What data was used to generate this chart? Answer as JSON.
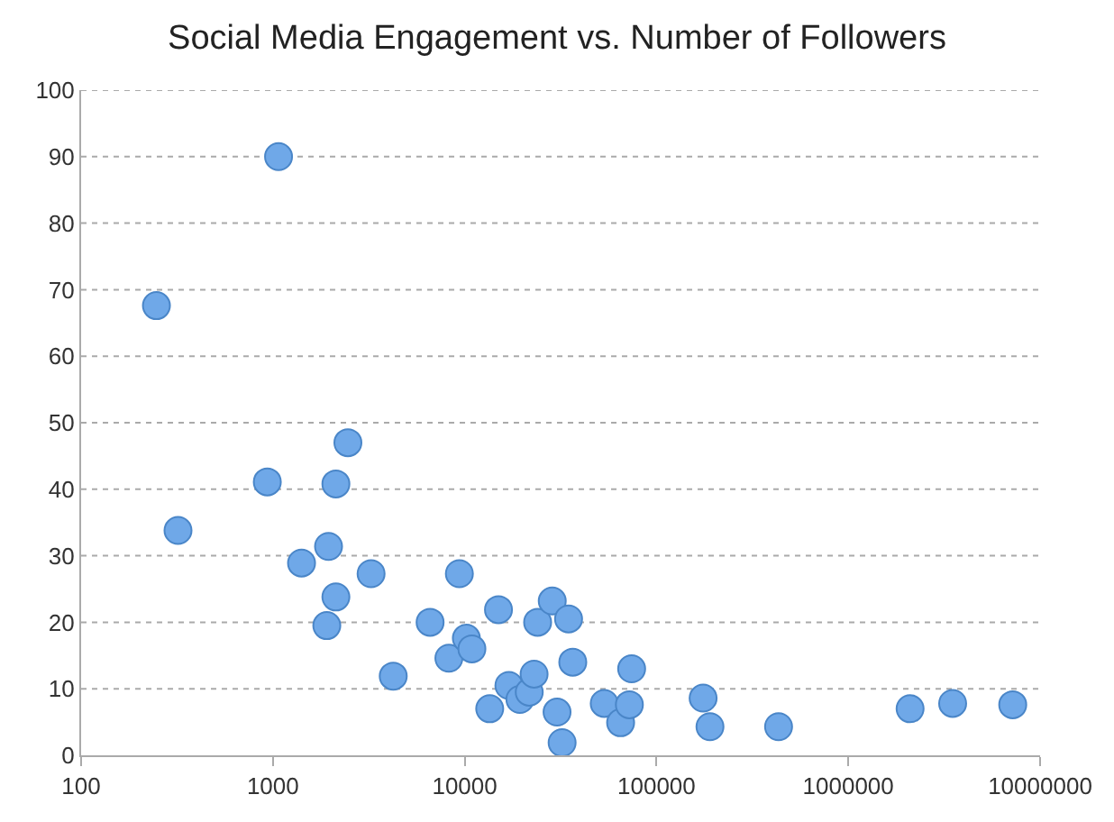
{
  "chart_data": {
    "type": "scatter",
    "title": "Social Media Engagement vs. Number of Followers",
    "x": [
      247,
      1070,
      320,
      935,
      2130,
      2460,
      1950,
      1410,
      2130,
      1910,
      3250,
      4240,
      6600,
      9380,
      8270,
      10200,
      10900,
      13500,
      15000,
      17000,
      19400,
      21700,
      23000,
      24000,
      28600,
      34800,
      30300,
      32200,
      36600,
      53400,
      65000,
      72200,
      74200,
      175000,
      190000,
      433000,
      2100000,
      3500000,
      7200000
    ],
    "series": [
      {
        "color": "#6fa8e8",
        "values": [
          67.6,
          90,
          33.8,
          41.1,
          40.8,
          47,
          31.4,
          28.9,
          23.8,
          19.5,
          27.3,
          11.9,
          20,
          27.3,
          14.6,
          17.6,
          16,
          7,
          21.9,
          10.5,
          8.4,
          9.5,
          12.2,
          20,
          23.2,
          20.5,
          6.5,
          1.9,
          14,
          7.8,
          4.9,
          7.6,
          13,
          8.6,
          4.3,
          4.3,
          7,
          7.8,
          7.6
        ]
      }
    ],
    "log": "x",
    "xlim": [
      100,
      10000000
    ],
    "xticks": [
      100,
      1000,
      10000,
      100000,
      1000000,
      10000000
    ],
    "ylim": [
      0,
      100
    ],
    "yticks": [
      0,
      10,
      20,
      30,
      40,
      50,
      60,
      70,
      80,
      90,
      100
    ],
    "grid": "y",
    "marker": "circle"
  }
}
